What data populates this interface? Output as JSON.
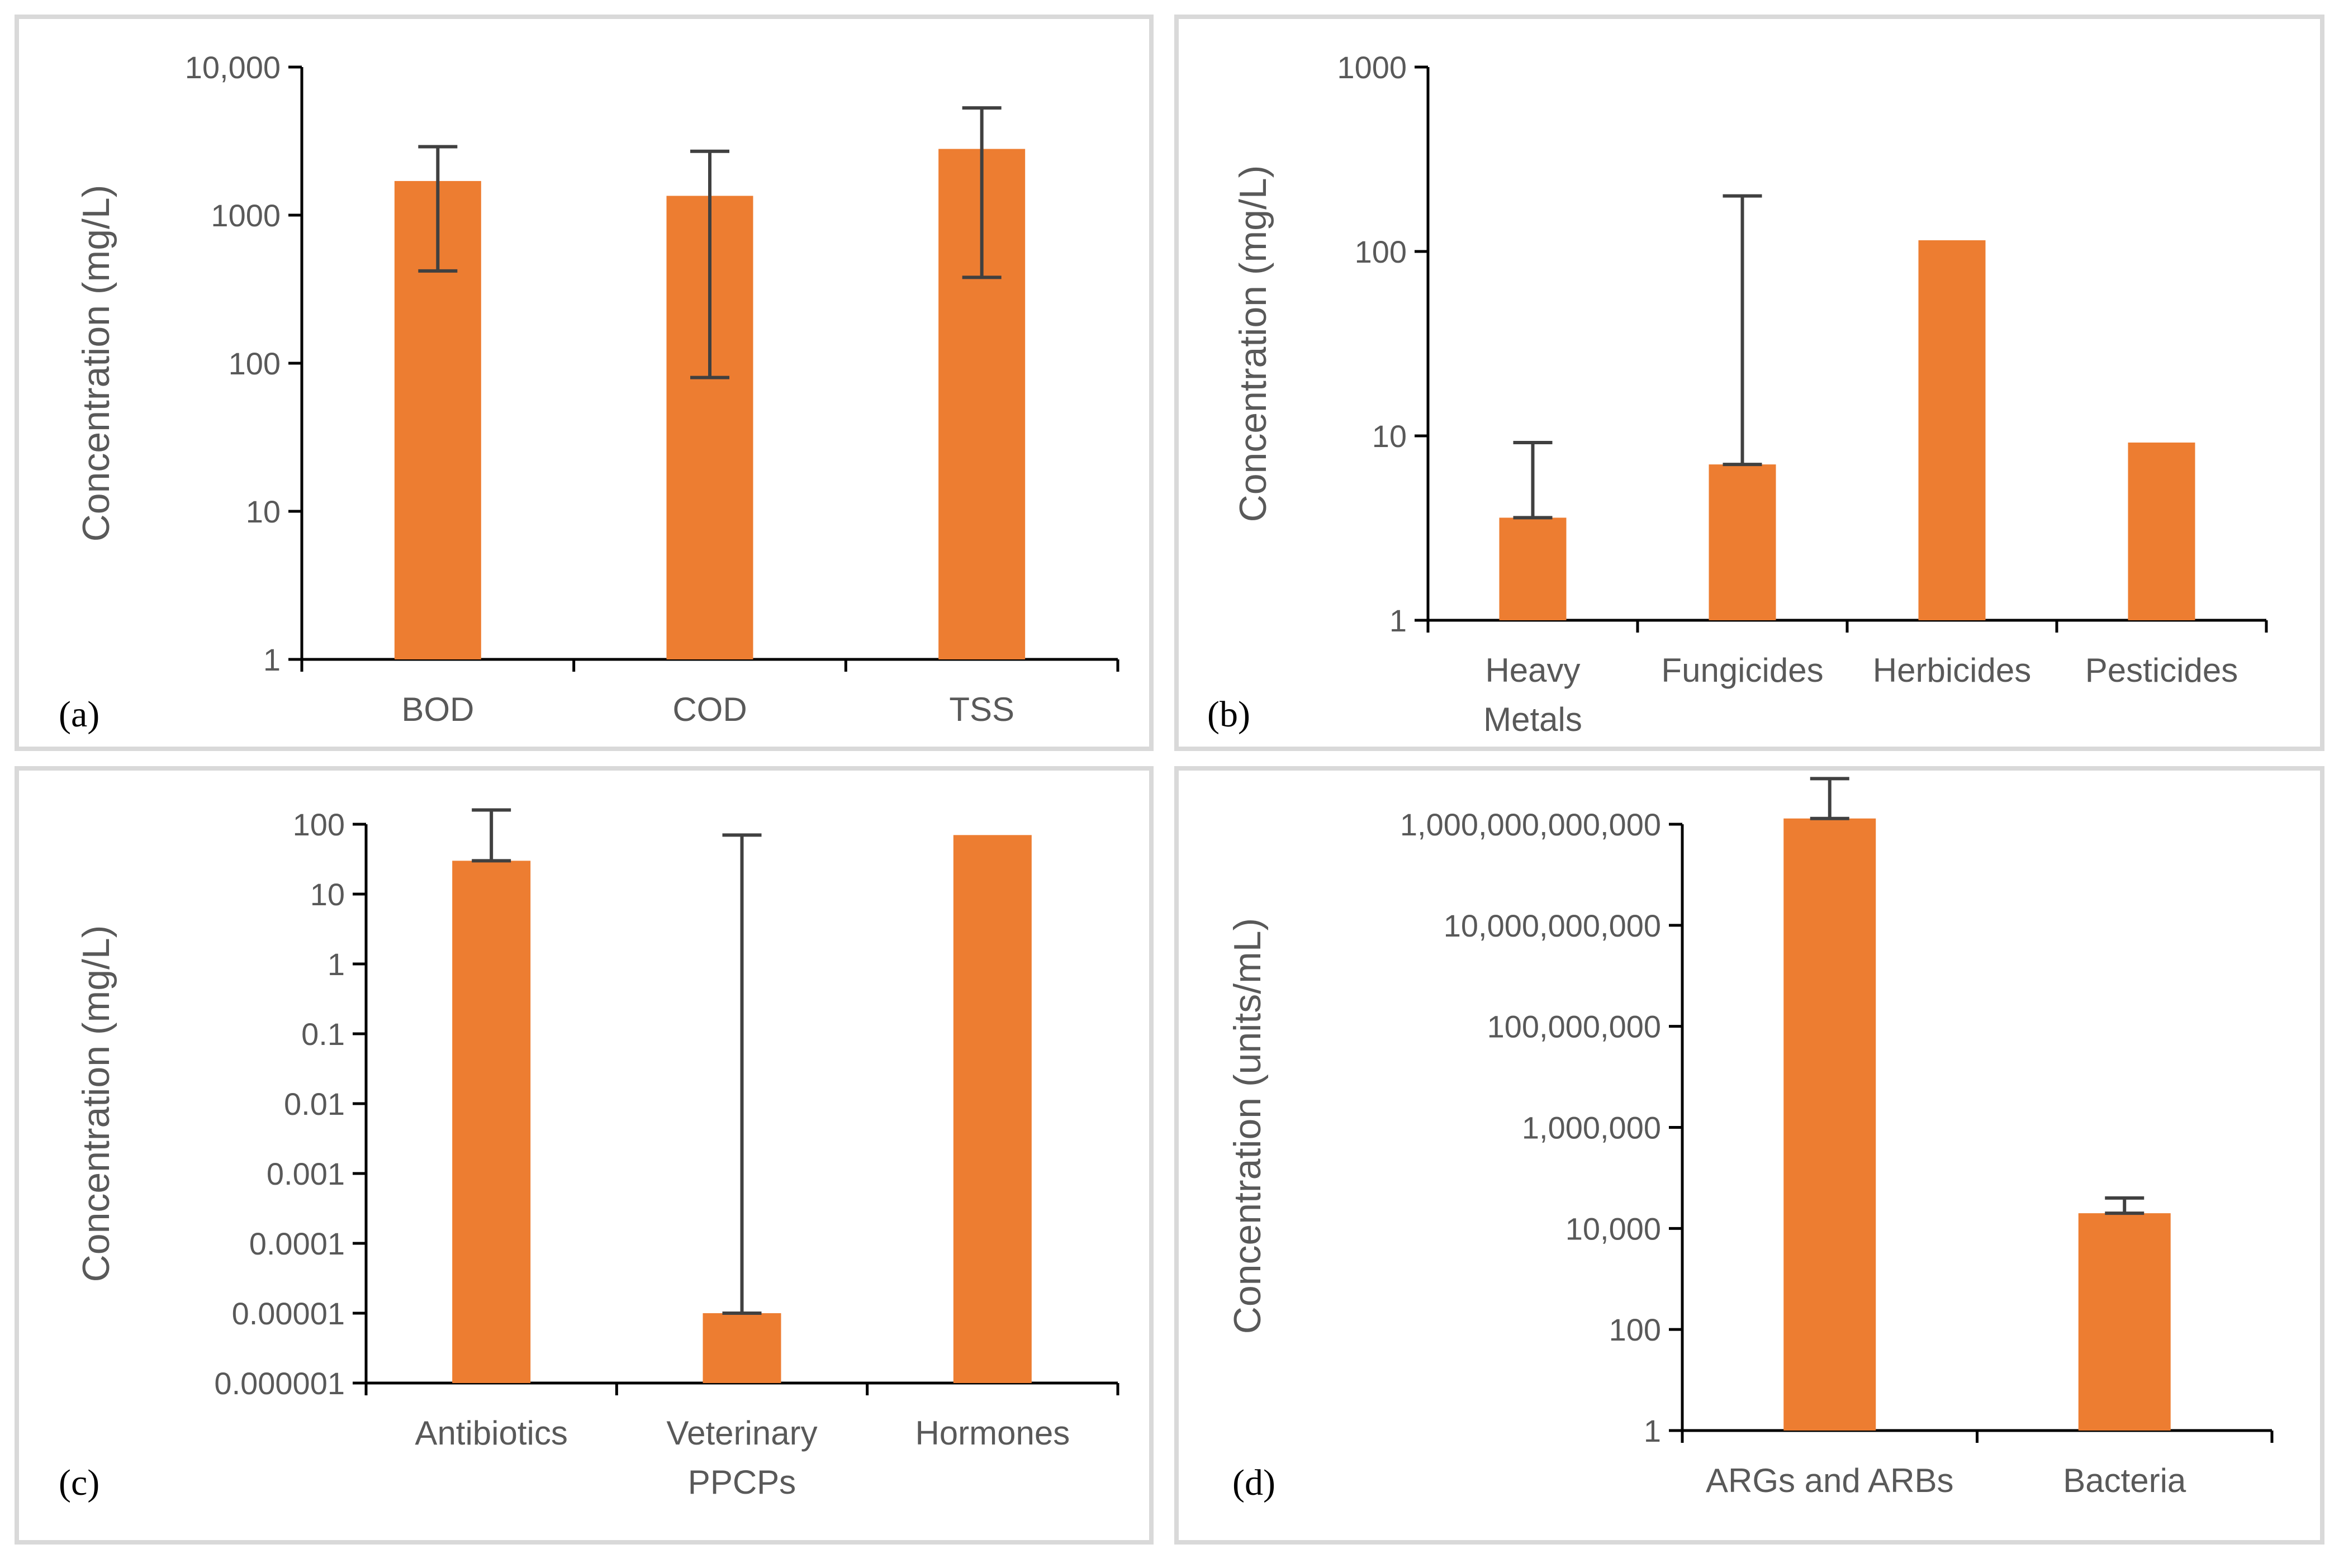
{
  "colors": {
    "bar": "#ED7D31",
    "error": "#404040",
    "axis": "#000000",
    "text": "#595959",
    "border": "#D9D9D9"
  },
  "chart_data": [
    {
      "panel": "(a)",
      "type": "bar",
      "scale": "log",
      "ylabel": "Concentration (mg/L)",
      "ylim": [
        1,
        10000
      ],
      "yticks": [
        1,
        10,
        100,
        1000,
        10000
      ],
      "ytick_labels": [
        "1",
        "10",
        "100",
        "1000",
        "10,000"
      ],
      "categories": [
        "BOD",
        "COD",
        "TSS"
      ],
      "values": [
        1700,
        1350,
        2800
      ],
      "err_low": [
        420,
        80,
        380
      ],
      "err_high": [
        2900,
        2700,
        5300
      ]
    },
    {
      "panel": "(b)",
      "type": "bar",
      "scale": "log",
      "ylabel": "Concentration (mg/L)",
      "ylim": [
        1,
        1000
      ],
      "yticks": [
        1,
        10,
        100,
        1000
      ],
      "ytick_labels": [
        "1",
        "10",
        "100",
        "1000"
      ],
      "categories": [
        "Heavy Metals",
        "Fungicides",
        "Herbicides",
        "Pesticides"
      ],
      "category_lines": [
        [
          "Heavy",
          "Metals"
        ],
        [
          "Fungicides"
        ],
        [
          "Herbicides"
        ],
        [
          "Pesticides"
        ]
      ],
      "values": [
        3.6,
        7,
        115,
        9.2
      ],
      "err_low": [
        3.6,
        7,
        null,
        null
      ],
      "err_high": [
        9.2,
        200,
        null,
        null
      ]
    },
    {
      "panel": "(c)",
      "type": "bar",
      "scale": "log",
      "ylabel": "Concentration (mg/L)",
      "ylim": [
        1e-06,
        100
      ],
      "yticks": [
        1e-06,
        1e-05,
        0.0001,
        0.001,
        0.01,
        0.1,
        1,
        10,
        100
      ],
      "ytick_labels": [
        "0.000001",
        "0.00001",
        "0.0001",
        "0.001",
        "0.01",
        "0.1",
        "1",
        "10",
        "100"
      ],
      "categories": [
        "Antibiotics",
        "Veterinary PPCPs",
        "Hormones"
      ],
      "category_lines": [
        [
          "Antibiotics"
        ],
        [
          "Veterinary",
          "PPCPs"
        ],
        [
          "Hormones"
        ]
      ],
      "values": [
        30,
        1e-05,
        70
      ],
      "err_low": [
        30,
        1e-05,
        null
      ],
      "err_high": [
        160,
        70,
        null
      ]
    },
    {
      "panel": "(d)",
      "type": "bar",
      "scale": "log",
      "ylabel": "Concentration (units/mL)",
      "ylim": [
        1,
        1000000000000
      ],
      "yticks": [
        1,
        100,
        10000,
        1000000,
        100000000,
        10000000000,
        1000000000000
      ],
      "ytick_labels": [
        "1",
        "100",
        "10,000",
        "1,000,000",
        "100,000,000",
        "10,000,000,000",
        "1,000,000,000,000"
      ],
      "categories": [
        "ARGs and ARBs",
        "Bacteria"
      ],
      "values": [
        1300000000000,
        20000
      ],
      "err_low": [
        1300000000000,
        20000
      ],
      "err_high": [
        8000000000000,
        40000
      ]
    }
  ]
}
